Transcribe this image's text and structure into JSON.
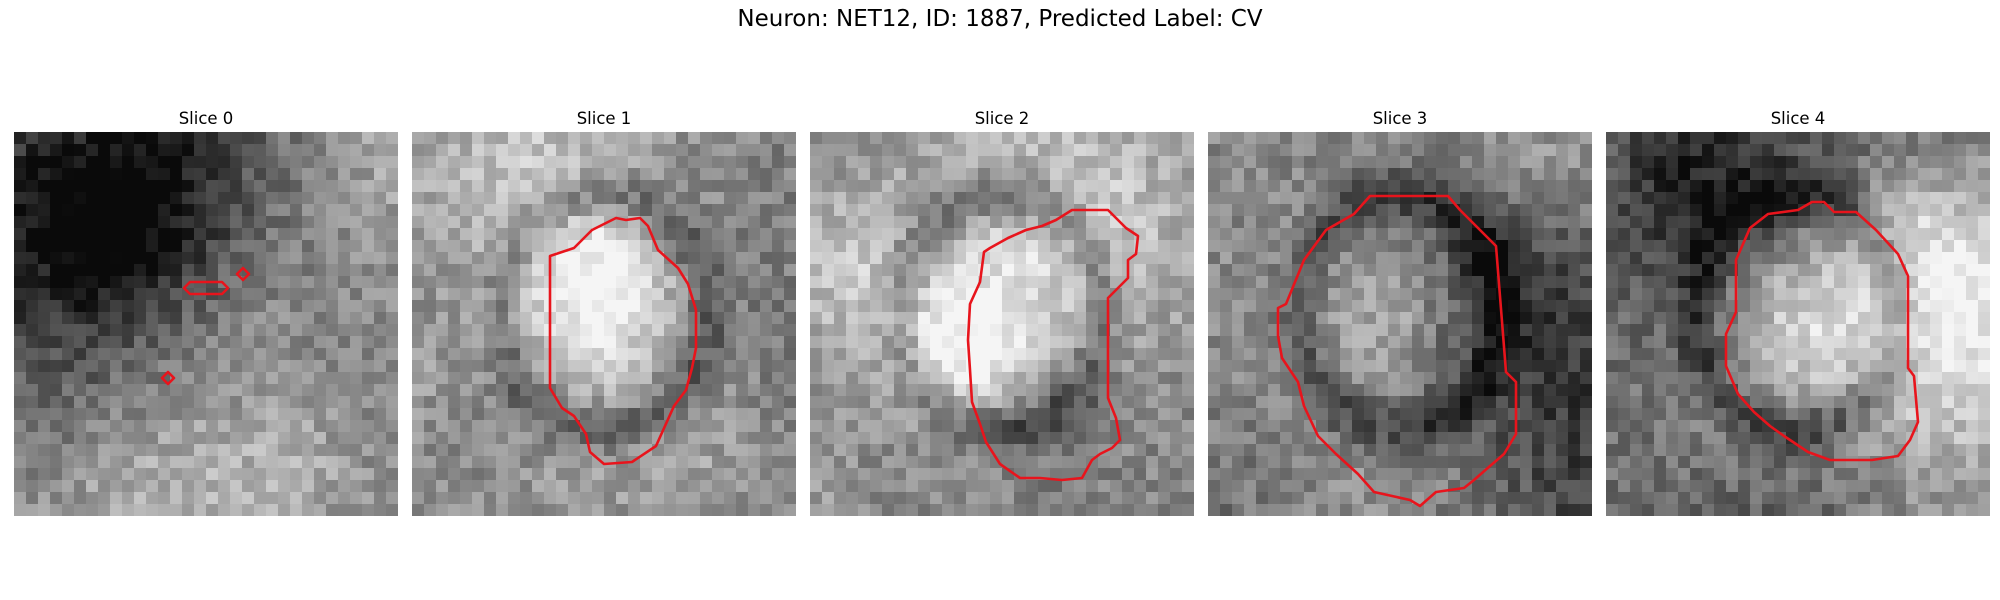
{
  "figure": {
    "title": "Neuron: NET12, ID: 1887, Predicted Label: CV"
  },
  "slices": [
    {
      "label": "Slice 0",
      "seed": 11,
      "pattern": "scatter"
    },
    {
      "label": "Slice 1",
      "seed": 23,
      "pattern": "ring"
    },
    {
      "label": "Slice 2",
      "seed": 37,
      "pattern": "ring"
    },
    {
      "label": "Slice 3",
      "seed": 41,
      "pattern": "ring"
    },
    {
      "label": "Slice 4",
      "seed": 59,
      "pattern": "ring"
    }
  ],
  "colors": {
    "contour": "#e8141c",
    "background": "#ffffff"
  },
  "colormap": "gray"
}
